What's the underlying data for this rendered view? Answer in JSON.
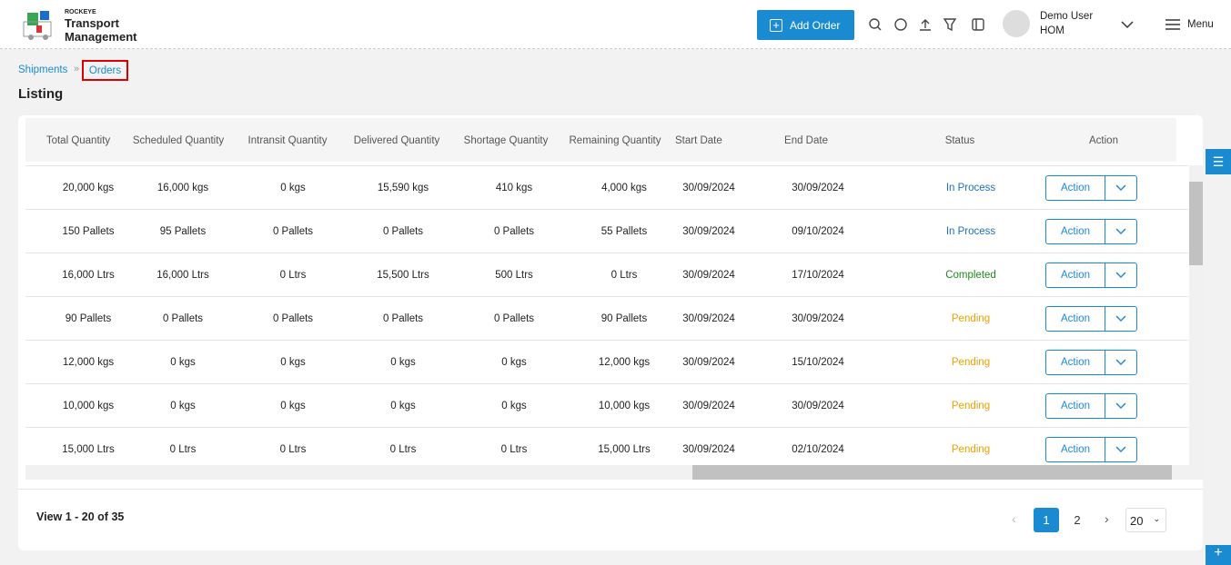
{
  "header": {
    "brand_small": "ROCKEYE",
    "brand_line1": "Transport",
    "brand_line2": "Management",
    "add_order": "Add Order",
    "user_name": "Demo User",
    "user_org": "HOM",
    "menu": "Menu"
  },
  "breadcrumb": [
    "Shipments",
    "Orders"
  ],
  "page_title": "Listing",
  "table": {
    "columns": [
      "Total Quantity",
      "Scheduled Quantity",
      "Intransit Quantity",
      "Delivered Quantity",
      "Shortage Quantity",
      "Remaining Quantity",
      "Start Date",
      "End Date",
      "Status",
      "Action"
    ],
    "rows": [
      [
        "20,000 kgs",
        "16,000 kgs",
        "0 kgs",
        "15,590 kgs",
        "410 kgs",
        "4,000 kgs",
        "30/09/2024",
        "30/09/2024",
        "In Process",
        "Action"
      ],
      [
        "150 Pallets",
        "95 Pallets",
        "0 Pallets",
        "0 Pallets",
        "0 Pallets",
        "55 Pallets",
        "30/09/2024",
        "09/10/2024",
        "In Process",
        "Action"
      ],
      [
        "16,000 Ltrs",
        "16,000 Ltrs",
        "0 Ltrs",
        "15,500 Ltrs",
        "500 Ltrs",
        "0 Ltrs",
        "30/09/2024",
        "17/10/2024",
        "Completed",
        "Action"
      ],
      [
        "90 Pallets",
        "0 Pallets",
        "0 Pallets",
        "0 Pallets",
        "0 Pallets",
        "90 Pallets",
        "30/09/2024",
        "30/09/2024",
        "Pending",
        "Action"
      ],
      [
        "12,000 kgs",
        "0 kgs",
        "0 kgs",
        "0 kgs",
        "0 kgs",
        "12,000 kgs",
        "30/09/2024",
        "15/10/2024",
        "Pending",
        "Action"
      ],
      [
        "10,000 kgs",
        "0 kgs",
        "0 kgs",
        "0 kgs",
        "0 kgs",
        "10,000 kgs",
        "30/09/2024",
        "30/09/2024",
        "Pending",
        "Action"
      ],
      [
        "15,000 Ltrs",
        "0 Ltrs",
        "0 Ltrs",
        "0 Ltrs",
        "0 Ltrs",
        "15,000 Ltrs",
        "30/09/2024",
        "02/10/2024",
        "Pending",
        "Action"
      ]
    ],
    "status_colors": [
      "#1e6fc4",
      "#1e6fc4",
      "#1f8a1f",
      "#e9a100",
      "#e9a100",
      "#e9a100",
      "#e9a100"
    ]
  },
  "footer": {
    "summary": "View 1 - 20 of 35",
    "pages": [
      "1",
      "2"
    ],
    "page_size": "20"
  }
}
